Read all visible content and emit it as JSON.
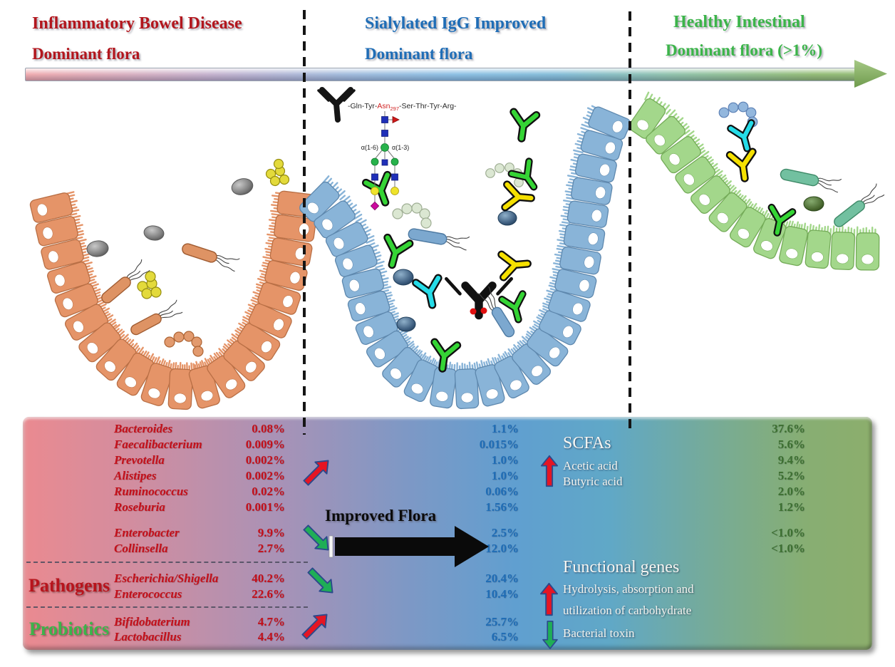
{
  "header": {
    "left_title": "Inflammatory Bowel Disease",
    "left_subtitle": "Dominant flora",
    "mid_title": "Sialylated IgG Improved",
    "mid_subtitle": "Dominant flora",
    "right_title": "Healthy Intestinal",
    "right_subtitle": "Dominant flora (>1%)"
  },
  "igg": {
    "peptide_pre": "-Gln-Tyr-",
    "peptide_asn": "Asn",
    "peptide_asn_sub": "297",
    "peptide_post": "-Ser-Thr-Tyr-Arg-",
    "alpha_left": "α(1-6)",
    "alpha_right": "α(1-3)"
  },
  "panel": {
    "improved_flora_label": "Improved Flora",
    "groups": [
      {
        "label": "",
        "trend": "up",
        "rows": [
          {
            "name": "Bacteroides",
            "ibd": "0.08%",
            "igg": "1.1%",
            "healthy": "37.6%"
          },
          {
            "name": "Faecalibacterium",
            "ibd": "0.009%",
            "igg": "0.015%",
            "healthy": "5.6%"
          },
          {
            "name": "Prevotella",
            "ibd": "0.002%",
            "igg": "1.0%",
            "healthy": "9.4%"
          },
          {
            "name": "Alistipes",
            "ibd": "0.002%",
            "igg": "1.0%",
            "healthy": "5.2%"
          },
          {
            "name": "Ruminococcus",
            "ibd": "0.02%",
            "igg": "0.06%",
            "healthy": "2.0%"
          },
          {
            "name": "Roseburia",
            "ibd": "0.001%",
            "igg": "1.56%",
            "healthy": "1.2%"
          }
        ]
      },
      {
        "label": "",
        "trend": "down",
        "rows": [
          {
            "name": "Enterobacter",
            "ibd": "9.9%",
            "igg": "2.5%",
            "healthy": "<1.0%"
          },
          {
            "name": "Collinsella",
            "ibd": "2.7%",
            "igg": "12.0%",
            "healthy": "<1.0%"
          }
        ]
      },
      {
        "label": "Pathogens",
        "trend": "down",
        "rows": [
          {
            "name": "Escherichia/Shigella",
            "ibd": "40.2%",
            "igg": "20.4%",
            "healthy": ""
          },
          {
            "name": "Enterococcus",
            "ibd": "22.6%",
            "igg": "10.4%",
            "healthy": ""
          }
        ]
      },
      {
        "label": "Probiotics",
        "trend": "up",
        "rows": [
          {
            "name": "Bifidobaterium",
            "ibd": "4.7%",
            "igg": "25.7%",
            "healthy": ""
          },
          {
            "name": "Lactobacillus",
            "ibd": "4.4%",
            "igg": "6.5%",
            "healthy": ""
          }
        ]
      }
    ],
    "scfas": {
      "title": "SCFAs",
      "line1": "Acetic acid",
      "line2": "Butyric acid"
    },
    "functional": {
      "title": "Functional genes",
      "up_line1": "Hydrolysis, absorption and",
      "up_line2": "utilization of carbohydrate",
      "down_line": "Bacterial toxin"
    }
  },
  "colors": {
    "ibd_text": "#c4101a",
    "ibd_header": "#b2161d",
    "igg_text": "#1f6db6",
    "healthy_header": "#3cb44a",
    "healthy_value_text": "#3d7031",
    "trend_up": "#e51523",
    "trend_down": "#1fae56",
    "trend_outline": "#2c4a8c"
  }
}
